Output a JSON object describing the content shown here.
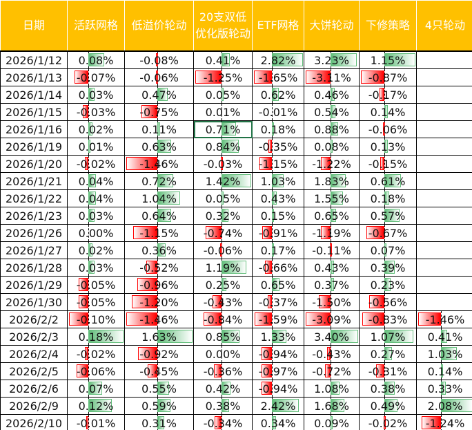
{
  "headers": [
    "日期",
    "活跃网格",
    "低溢价轮动",
    "20支双低优化版轮动",
    "ETF网格",
    "大饼轮动",
    "下修策略",
    "4只轮动"
  ],
  "colors": {
    "header": "#FFC000",
    "positive": "#63BE7B",
    "negative": "#FF0000",
    "selection": "#217346"
  },
  "selected_cell": {
    "row": "2026/1/16",
    "column": "20支双低优化版轮动"
  },
  "rows": [
    {
      "date": "2026/1/12",
      "values": [
        "0.08%",
        "-0.08%",
        "0.41%",
        "2.82%",
        "3.23%",
        "1.15%",
        ""
      ]
    },
    {
      "date": "2026/1/13",
      "values": [
        "-0.07%",
        "-0.06%",
        "-1.25%",
        "-1.65%",
        "-3.11%",
        "-0.87%",
        ""
      ]
    },
    {
      "date": "2026/1/14",
      "values": [
        "0.03%",
        "0.47%",
        "0.05%",
        "0.62%",
        "0.46%",
        "-0.17%",
        ""
      ]
    },
    {
      "date": "2026/1/15",
      "values": [
        "-0.03%",
        "-0.75%",
        "0.01%",
        "-0.01%",
        "0.54%",
        "0.14%",
        ""
      ]
    },
    {
      "date": "2026/1/16",
      "values": [
        "0.02%",
        "0.11%",
        "0.71%",
        "0.18%",
        "0.88%",
        "-0.06%",
        ""
      ]
    },
    {
      "date": "2026/1/19",
      "values": [
        "0.01%",
        "0.63%",
        "0.84%",
        "-0.35%",
        "0.08%",
        "0.13%",
        ""
      ]
    },
    {
      "date": "2026/1/20",
      "values": [
        "-0.02%",
        "-1.46%",
        "-0.03%",
        "-1.15%",
        "-1.22%",
        "-0.15%",
        ""
      ]
    },
    {
      "date": "2026/1/21",
      "values": [
        "0.04%",
        "0.72%",
        "1.42%",
        "1.03%",
        "1.83%",
        "0.61%",
        ""
      ]
    },
    {
      "date": "2026/1/22",
      "values": [
        "0.04%",
        "1.04%",
        "0.05%",
        "0.43%",
        "1.55%",
        "0.18%",
        ""
      ]
    },
    {
      "date": "2026/1/23",
      "values": [
        "0.03%",
        "0.64%",
        "0.32%",
        "0.15%",
        "0.65%",
        "0.57%",
        ""
      ]
    },
    {
      "date": "2026/1/26",
      "values": [
        "0.00%",
        "-1.15%",
        "-0.74%",
        "-0.91%",
        "-1.19%",
        "-0.67%",
        ""
      ]
    },
    {
      "date": "2026/1/27",
      "values": [
        "0.02%",
        "0.36%",
        "-0.06%",
        "0.17%",
        "-0.11%",
        "0.07%",
        ""
      ]
    },
    {
      "date": "2026/1/28",
      "values": [
        "0.03%",
        "-0.52%",
        "1.19%",
        "-0.66%",
        "0.43%",
        "0.39%",
        ""
      ]
    },
    {
      "date": "2026/1/29",
      "values": [
        "-0.05%",
        "-0.96%",
        "0.25%",
        "0.65%",
        "0.37%",
        "0.23%",
        ""
      ]
    },
    {
      "date": "2026/1/30",
      "values": [
        "-0.05%",
        "-1.20%",
        "-0.43%",
        "-0.37%",
        "-1.50%",
        "-0.56%",
        ""
      ]
    },
    {
      "date": "2026/2/2",
      "values": [
        "-0.10%",
        "-1.46%",
        "-0.84%",
        "-1.59%",
        "-3.09%",
        "-0.83%",
        "-1.46%"
      ]
    },
    {
      "date": "2026/2/3",
      "values": [
        "0.18%",
        "1.63%",
        "0.85%",
        "1.33%",
        "3.40%",
        "1.07%",
        "0.41%"
      ]
    },
    {
      "date": "2026/2/4",
      "values": [
        "-0.02%",
        "-0.92%",
        "0.00%",
        "-0.94%",
        "-0.43%",
        "0.27%",
        "1.03%"
      ]
    },
    {
      "date": "2026/2/5",
      "values": [
        "-0.06%",
        "-0.45%",
        "-0.36%",
        "-0.97%",
        "-0.72%",
        "-0.31%",
        "0.14%"
      ]
    },
    {
      "date": "2026/2/6",
      "values": [
        "0.07%",
        "0.55%",
        "0.42%",
        "-0.94%",
        "1.08%",
        "0.38%",
        "0.33%"
      ]
    },
    {
      "date": "2026/2/9",
      "values": [
        "0.12%",
        "0.59%",
        "0.38%",
        "2.42%",
        "1.68%",
        "0.49%",
        "2.08%"
      ]
    },
    {
      "date": "2026/2/10",
      "values": [
        "-0.01%",
        "0.31%",
        "-0.34%",
        "0.34%",
        "0.09%",
        "-0.02%",
        "-1.24%"
      ]
    }
  ]
}
